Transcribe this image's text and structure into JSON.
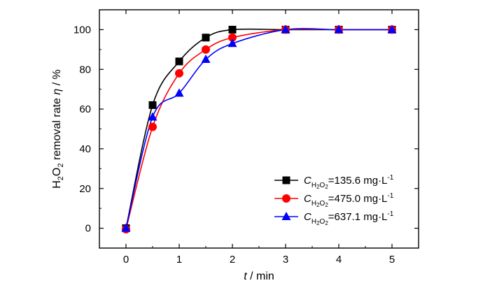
{
  "chart_data": {
    "type": "line",
    "xlabel": {
      "var": "t",
      "unit": " / min"
    },
    "ylabel": {
      "main": "H",
      "sub1": "2",
      "mid": "O",
      "sub2": "2",
      "rest": " removal rate ",
      "var": "η",
      "unit": " / %"
    },
    "xlim": [
      -0.5,
      5.5
    ],
    "ylim": [
      -10,
      110
    ],
    "x_ticks": [
      0,
      1,
      2,
      3,
      4,
      5
    ],
    "y_ticks": [
      0,
      20,
      40,
      60,
      80,
      100
    ],
    "grid": false,
    "legend_position": "bottom-right",
    "series": [
      {
        "label": {
          "c": "C",
          "sub": "H",
          "sub2": "2",
          "sub3": "O",
          "sub4": "2",
          "value": "=135.6 mg·L",
          "sup": "-1"
        },
        "color": "#000000",
        "marker": "square",
        "x": [
          0,
          0.5,
          1,
          1.5,
          2,
          3,
          4,
          5
        ],
        "y": [
          0,
          62,
          84,
          96,
          100,
          100,
          100,
          100
        ]
      },
      {
        "label": {
          "c": "C",
          "sub": "H",
          "sub2": "2",
          "sub3": "O",
          "sub4": "2",
          "value": "=475.0 mg·L",
          "sup": "-1"
        },
        "color": "#ff0000",
        "marker": "circle",
        "x": [
          0,
          0.5,
          1,
          1.5,
          2,
          3,
          4,
          5
        ],
        "y": [
          -0.5,
          51,
          78,
          90,
          96,
          100,
          100,
          100
        ]
      },
      {
        "label": {
          "c": "C",
          "sub": "H",
          "sub2": "2",
          "sub3": "O",
          "sub4": "2",
          "value": "=637.1 mg·L",
          "sup": "-1"
        },
        "color": "#0000ff",
        "marker": "triangle",
        "x": [
          0,
          0.5,
          1,
          1.5,
          2,
          3,
          4,
          5
        ],
        "y": [
          0,
          56,
          68,
          85,
          93,
          100,
          100,
          100
        ]
      }
    ]
  }
}
